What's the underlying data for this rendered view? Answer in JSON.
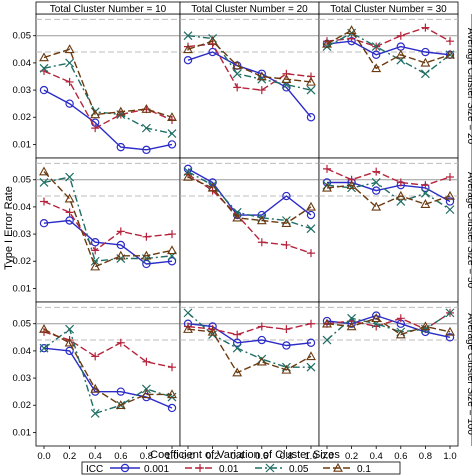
{
  "chart_data": {
    "type": "line",
    "ylabel": "Type I Error Rate",
    "xlabel": "Coefficient of Variation of Cluster Sizes",
    "x": [
      0.0,
      0.2,
      0.4,
      0.6,
      0.8,
      1.0
    ],
    "x_ticks": [
      "0.0",
      "0.2",
      "0.4",
      "0.6",
      "0.8",
      "1.0"
    ],
    "y_ticks": [
      "0.01",
      "0.02",
      "0.03",
      "0.04",
      "0.05"
    ],
    "ylim": [
      0.005,
      0.058
    ],
    "reference_lines": {
      "solid": 0.05,
      "dashed": [
        0.044,
        0.056
      ]
    },
    "column_labels": [
      "Total Cluster Number = 10",
      "Total Cluster Number = 20",
      "Total Cluster Number = 30"
    ],
    "row_labels": [
      "Average Cluster Size = 20",
      "Average Cluster Size = 50",
      "Average Cluster Size = 100"
    ],
    "legend": {
      "title": "ICC",
      "position": "bottom",
      "entries": [
        "0.001",
        "0.01",
        "0.05",
        "0.1"
      ]
    },
    "series_styles": [
      {
        "name": "0.001",
        "color": "#2b2bc8",
        "marker": "circle",
        "dash": "solid"
      },
      {
        "name": "0.01",
        "color": "#b5243c",
        "marker": "plus",
        "dash": "longdash"
      },
      {
        "name": "0.05",
        "color": "#1f6e64",
        "marker": "x",
        "dash": "dashdot"
      },
      {
        "name": "0.1",
        "color": "#6b3a10",
        "marker": "triangle",
        "dash": "longdash"
      }
    ],
    "panels": [
      {
        "row": 0,
        "col": 0,
        "series": [
          [
            0.03,
            0.025,
            0.018,
            0.009,
            0.008,
            0.01
          ],
          [
            0.037,
            0.033,
            0.016,
            0.021,
            0.023,
            0.019
          ],
          [
            0.038,
            0.04,
            0.022,
            0.021,
            0.016,
            0.014
          ],
          [
            0.042,
            0.045,
            0.021,
            0.022,
            0.023,
            0.02
          ]
        ]
      },
      {
        "row": 0,
        "col": 1,
        "series": [
          [
            0.041,
            0.044,
            0.039,
            0.036,
            0.031,
            0.02
          ],
          [
            0.046,
            0.047,
            0.031,
            0.03,
            0.036,
            0.035
          ],
          [
            0.05,
            0.049,
            0.036,
            0.034,
            0.032,
            0.03
          ],
          [
            0.045,
            0.048,
            0.039,
            0.035,
            0.034,
            0.033
          ]
        ]
      },
      {
        "row": 0,
        "col": 2,
        "series": [
          [
            0.047,
            0.048,
            0.043,
            0.046,
            0.044,
            0.043
          ],
          [
            0.048,
            0.049,
            0.046,
            0.05,
            0.053,
            0.048
          ],
          [
            0.046,
            0.051,
            0.046,
            0.041,
            0.036,
            0.043
          ],
          [
            0.047,
            0.052,
            0.038,
            0.043,
            0.04,
            0.043
          ]
        ]
      },
      {
        "row": 1,
        "col": 0,
        "series": [
          [
            0.034,
            0.035,
            0.027,
            0.026,
            0.019,
            0.02
          ],
          [
            0.042,
            0.038,
            0.024,
            0.031,
            0.029,
            0.03
          ],
          [
            0.049,
            0.051,
            0.02,
            0.021,
            0.021,
            0.022
          ],
          [
            0.053,
            0.043,
            0.018,
            0.022,
            0.022,
            0.024
          ]
        ]
      },
      {
        "row": 1,
        "col": 1,
        "series": [
          [
            0.054,
            0.049,
            0.037,
            0.037,
            0.044,
            0.037
          ],
          [
            0.052,
            0.046,
            0.037,
            0.027,
            0.026,
            0.023
          ],
          [
            0.053,
            0.048,
            0.038,
            0.036,
            0.035,
            0.032
          ],
          [
            0.051,
            0.047,
            0.036,
            0.035,
            0.034,
            0.04
          ]
        ]
      },
      {
        "row": 1,
        "col": 2,
        "series": [
          [
            0.049,
            0.049,
            0.046,
            0.048,
            0.047,
            0.042
          ],
          [
            0.054,
            0.05,
            0.053,
            0.049,
            0.048,
            0.051
          ],
          [
            0.048,
            0.047,
            0.049,
            0.042,
            0.045,
            0.039
          ],
          [
            0.047,
            0.048,
            0.04,
            0.044,
            0.041,
            0.044
          ]
        ]
      },
      {
        "row": 2,
        "col": 0,
        "series": [
          [
            0.041,
            0.04,
            0.025,
            0.025,
            0.023,
            0.019
          ],
          [
            0.047,
            0.044,
            0.038,
            0.043,
            0.036,
            0.034
          ],
          [
            0.041,
            0.048,
            0.017,
            0.02,
            0.026,
            0.023
          ],
          [
            0.048,
            0.043,
            0.026,
            0.02,
            0.024,
            0.024
          ]
        ]
      },
      {
        "row": 2,
        "col": 1,
        "series": [
          [
            0.05,
            0.049,
            0.043,
            0.044,
            0.042,
            0.043
          ],
          [
            0.049,
            0.048,
            0.046,
            0.049,
            0.048,
            0.05
          ],
          [
            0.054,
            0.046,
            0.041,
            0.037,
            0.034,
            0.034
          ],
          [
            0.048,
            0.047,
            0.032,
            0.036,
            0.033,
            0.038
          ]
        ]
      },
      {
        "row": 2,
        "col": 2,
        "series": [
          [
            0.051,
            0.05,
            0.053,
            0.05,
            0.047,
            0.045
          ],
          [
            0.05,
            0.051,
            0.049,
            0.052,
            0.048,
            0.054
          ],
          [
            0.044,
            0.052,
            0.05,
            0.047,
            0.048,
            0.054
          ],
          [
            0.05,
            0.049,
            0.052,
            0.046,
            0.049,
            0.047
          ]
        ]
      }
    ]
  }
}
